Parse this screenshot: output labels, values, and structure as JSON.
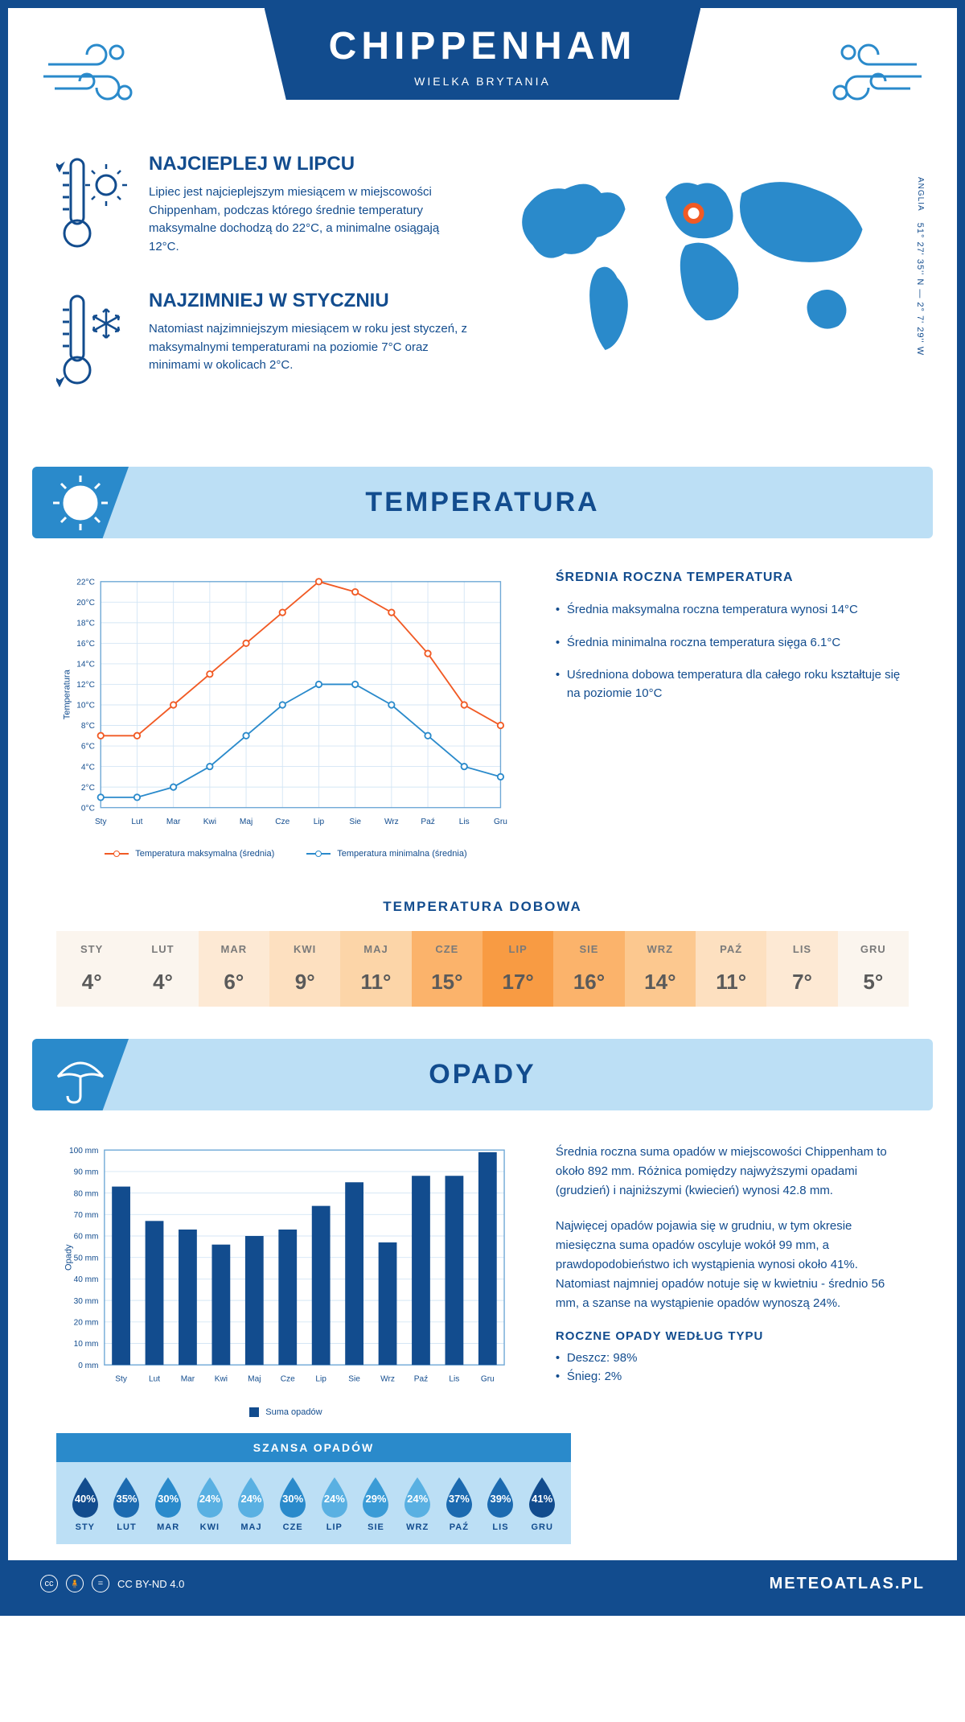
{
  "header": {
    "city": "CHIPPENHAM",
    "country": "WIELKA BRYTANIA"
  },
  "coords": {
    "region": "ANGLIA",
    "text": "51° 27' 35'' N — 2° 7' 29'' W"
  },
  "facts": {
    "warm": {
      "title": "NAJCIEPLEJ W LIPCU",
      "body": "Lipiec jest najcieplejszym miesiącem w miejscowości Chippenham, podczas którego średnie temperatury maksymalne dochodzą do 22°C, a minimalne osiągają 12°C."
    },
    "cold": {
      "title": "NAJZIMNIEJ W STYCZNIU",
      "body": "Natomiast najzimniejszym miesiącem w roku jest styczeń, z maksymalnymi temperaturami na poziomie 7°C oraz minimami w okolicach 2°C."
    }
  },
  "sections": {
    "temperature": "TEMPERATURA",
    "precipitation": "OPADY"
  },
  "tempChart": {
    "type": "line",
    "months": [
      "Sty",
      "Lut",
      "Mar",
      "Kwi",
      "Maj",
      "Cze",
      "Lip",
      "Sie",
      "Wrz",
      "Paź",
      "Lis",
      "Gru"
    ],
    "series": {
      "max": {
        "label": "Temperatura maksymalna (średnia)",
        "color": "#f15a24",
        "values": [
          7,
          7,
          10,
          13,
          16,
          19,
          22,
          21,
          19,
          15,
          10,
          8
        ]
      },
      "min": {
        "label": "Temperatura minimalna (średnia)",
        "color": "#2a8acb",
        "values": [
          1,
          1,
          2,
          4,
          7,
          10,
          12,
          12,
          10,
          7,
          4,
          3
        ]
      }
    },
    "ylabel": "Temperatura",
    "ylim": [
      0,
      22
    ],
    "ytick_step": 2,
    "ytick_suffix": "°C",
    "grid_color": "#d4e6f5",
    "background": "#ffffff"
  },
  "tempSide": {
    "heading": "ŚREDNIA ROCZNA TEMPERATURA",
    "points": [
      "Średnia maksymalna roczna temperatura wynosi 14°C",
      "Średnia minimalna roczna temperatura sięga 6.1°C",
      "Uśredniona dobowa temperatura dla całego roku kształtuje się na poziomie 10°C"
    ]
  },
  "daily": {
    "heading": "TEMPERATURA DOBOWA",
    "months": [
      "STY",
      "LUT",
      "MAR",
      "KWI",
      "MAJ",
      "CZE",
      "LIP",
      "SIE",
      "WRZ",
      "PAŹ",
      "LIS",
      "GRU"
    ],
    "values": [
      "4°",
      "4°",
      "6°",
      "9°",
      "11°",
      "15°",
      "17°",
      "16°",
      "14°",
      "11°",
      "7°",
      "5°"
    ],
    "colors": [
      "#fbf5ee",
      "#fbf5ee",
      "#fde9d4",
      "#fde0c0",
      "#fcd5a8",
      "#fbb36b",
      "#f89b43",
      "#fbb36b",
      "#fcc88f",
      "#fde0c0",
      "#fde9d4",
      "#fbf5ee"
    ]
  },
  "precipChart": {
    "type": "bar",
    "months": [
      "Sty",
      "Lut",
      "Mar",
      "Kwi",
      "Maj",
      "Cze",
      "Lip",
      "Sie",
      "Wrz",
      "Paź",
      "Lis",
      "Gru"
    ],
    "values": [
      83,
      67,
      63,
      56,
      60,
      63,
      74,
      85,
      57,
      88,
      88,
      99
    ],
    "color": "#124c8e",
    "ylabel": "Opady",
    "ylim": [
      0,
      100
    ],
    "ytick_step": 10,
    "ytick_suffix": " mm",
    "grid_color": "#d4e6f5",
    "legend": "Suma opadów"
  },
  "precipSide": {
    "para1": "Średnia roczna suma opadów w miejscowości Chippenham to około 892 mm. Różnica pomiędzy najwyższymi opadami (grudzień) i najniższymi (kwiecień) wynosi 42.8 mm.",
    "para2": "Najwięcej opadów pojawia się w grudniu, w tym okresie miesięczna suma opadów oscyluje wokół 99 mm, a prawdopodobieństwo ich wystąpienia wynosi około 41%. Natomiast najmniej opadów notuje się w kwietniu - średnio 56 mm, a szanse na wystąpienie opadów wynoszą 24%.",
    "typeHeading": "ROCZNE OPADY WEDŁUG TYPU",
    "typeRain": "Deszcz: 98%",
    "typeSnow": "Śnieg: 2%"
  },
  "chance": {
    "heading": "SZANSA OPADÓW",
    "months": [
      "STY",
      "LUT",
      "MAR",
      "KWI",
      "MAJ",
      "CZE",
      "LIP",
      "SIE",
      "WRZ",
      "PAŹ",
      "LIS",
      "GRU"
    ],
    "values": [
      "40%",
      "35%",
      "30%",
      "24%",
      "24%",
      "30%",
      "24%",
      "29%",
      "24%",
      "37%",
      "39%",
      "41%"
    ],
    "colors": [
      "#124c8e",
      "#1c6ab0",
      "#2a8acb",
      "#59b0e2",
      "#59b0e2",
      "#2a8acb",
      "#59b0e2",
      "#3a9bd6",
      "#59b0e2",
      "#1c6ab0",
      "#1c6ab0",
      "#124c8e"
    ]
  },
  "footer": {
    "license": "CC BY-ND 4.0",
    "brand": "METEOATLAS.PL"
  }
}
